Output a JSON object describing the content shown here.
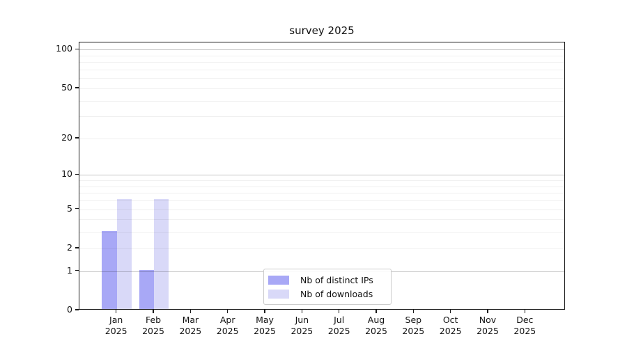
{
  "chart_data": {
    "type": "bar",
    "title": "survey 2025",
    "categories": [
      "Jan",
      "Feb",
      "Mar",
      "Apr",
      "May",
      "Jun",
      "Jul",
      "Aug",
      "Sep",
      "Oct",
      "Nov",
      "Dec"
    ],
    "year_label": "2025",
    "series": [
      {
        "name": "Nb of distinct IPs",
        "color": "#a8a8f6",
        "values": [
          3,
          1,
          0,
          0,
          0,
          0,
          0,
          0,
          0,
          0,
          0,
          0
        ]
      },
      {
        "name": "Nb of downloads",
        "color": "#d9d9f8",
        "values": [
          6,
          6,
          0,
          0,
          0,
          0,
          0,
          0,
          0,
          0,
          0,
          0
        ]
      }
    ],
    "xlabel": "",
    "ylabel": "",
    "yaxis": {
      "scale": "log1p",
      "ticks": [
        0,
        1,
        2,
        5,
        10,
        20,
        50,
        100
      ],
      "range": [
        0,
        112
      ],
      "major_gridlines": [
        1,
        10,
        100
      ],
      "minor_gridlines": [
        2,
        3,
        4,
        5,
        6,
        7,
        8,
        9,
        20,
        30,
        40,
        50,
        60,
        70,
        80,
        90
      ]
    },
    "grid": true,
    "legend_position": "lower-center"
  }
}
